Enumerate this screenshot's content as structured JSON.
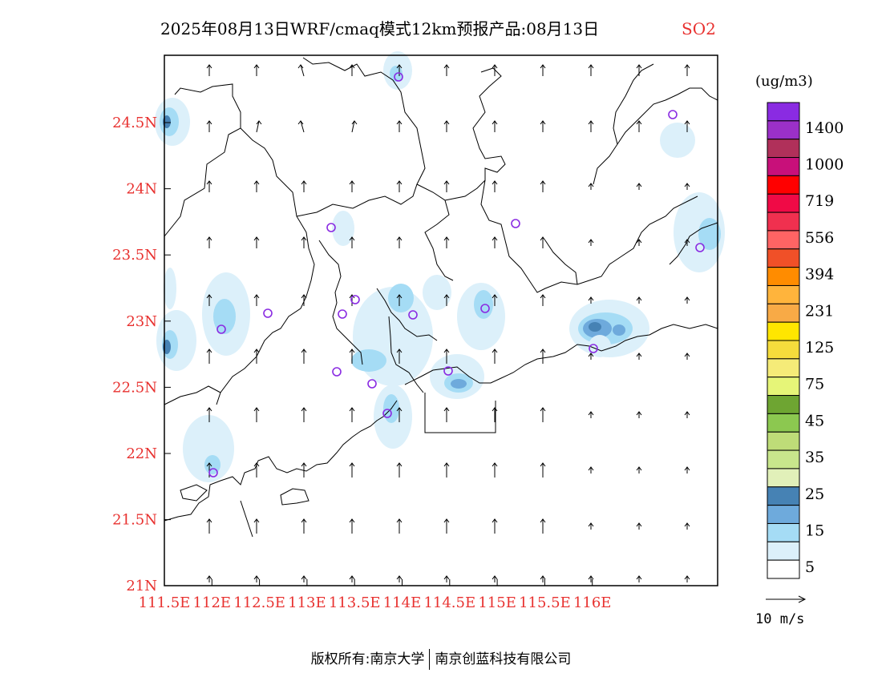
{
  "title": {
    "main": "2025年08月13日WRF/cmaq模式12km预报产品:08月13日",
    "pollutant": "SO2"
  },
  "axes": {
    "x_ticks": [
      "111.5E",
      "112E",
      "112.5E",
      "113E",
      "113.5E",
      "114E",
      "114.5E",
      "115E",
      "115.5E",
      "116E"
    ],
    "y_ticks": [
      "24.5N",
      "24N",
      "23.5N",
      "23N",
      "22.5N",
      "22N",
      "21.5N",
      "21N"
    ],
    "label_color": "#e8312f"
  },
  "legend": {
    "unit": "(ug/m3)",
    "labels": [
      "1400",
      "1000",
      "719",
      "556",
      "394",
      "231",
      "125",
      "75",
      "45",
      "35",
      "25",
      "15",
      "5"
    ],
    "colors_top_to_bottom": [
      "#8a2be2",
      "#9b30c8",
      "#b0305a",
      "#c8107a",
      "#ff0000",
      "#f00a46",
      "#f0304f",
      "#ff6464",
      "#f05028",
      "#ff8c00",
      "#ffb43c",
      "#f8aa46",
      "#ffe600",
      "#f5dc3c",
      "#f5eb78",
      "#e6f578",
      "#6ea532",
      "#8cc850",
      "#bedc78",
      "#c8e68c",
      "#e1f0b9",
      "#4682b4",
      "#6eaadc",
      "#a5dcf5",
      "#dcf0fa",
      "#ffffff"
    ]
  },
  "wind": {
    "reference_label": "10 m/s"
  },
  "stations_icon": "circle-marker-icon",
  "copyright": {
    "prefix": "版权所有:",
    "org1": "南京大学",
    "org2": "南京创蓝科技有限公司"
  }
}
